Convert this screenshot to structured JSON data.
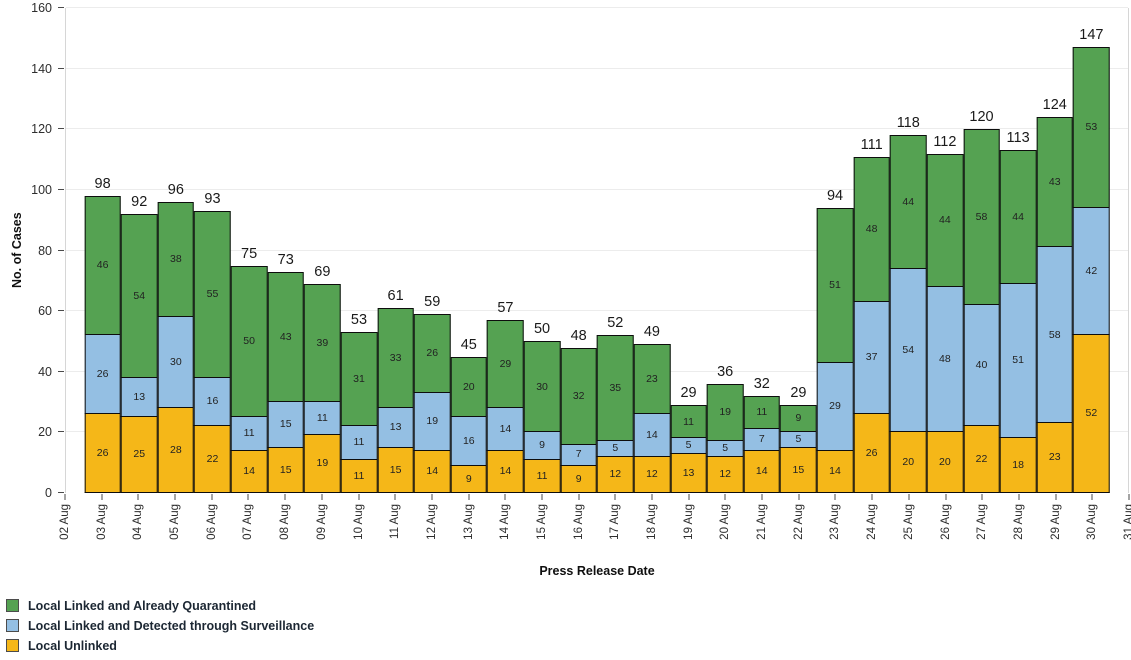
{
  "chart_data": {
    "type": "bar",
    "stacked": true,
    "title": "",
    "xlabel": "Press Release Date",
    "ylabel": "No. of Cases",
    "ylim": [
      0,
      160
    ],
    "y_ticks": [
      0,
      20,
      40,
      60,
      80,
      100,
      120,
      140,
      160
    ],
    "grid": "horizontal",
    "legend_position": "bottom-left",
    "bar_border_color": "#0d0d0d",
    "x_axis_ticks": [
      "02 Aug",
      "03 Aug",
      "04 Aug",
      "05 Aug",
      "06 Aug",
      "07 Aug",
      "08 Aug",
      "09 Aug",
      "10 Aug",
      "11 Aug",
      "12 Aug",
      "13 Aug",
      "14 Aug",
      "15 Aug",
      "16 Aug",
      "17 Aug",
      "18 Aug",
      "19 Aug",
      "20 Aug",
      "21 Aug",
      "22 Aug",
      "23 Aug",
      "24 Aug",
      "25 Aug",
      "26 Aug",
      "27 Aug",
      "28 Aug",
      "29 Aug",
      "30 Aug",
      "31 Aug"
    ],
    "categories": [
      "03 Aug",
      "04 Aug",
      "05 Aug",
      "06 Aug",
      "07 Aug",
      "08 Aug",
      "09 Aug",
      "10 Aug",
      "11 Aug",
      "12 Aug",
      "13 Aug",
      "14 Aug",
      "15 Aug",
      "16 Aug",
      "17 Aug",
      "18 Aug",
      "19 Aug",
      "20 Aug",
      "21 Aug",
      "22 Aug",
      "23 Aug",
      "24 Aug",
      "25 Aug",
      "26 Aug",
      "27 Aug",
      "28 Aug",
      "29 Aug",
      "30 Aug"
    ],
    "stack_order": "series listed top-to-bottom; last series is bottom of stack",
    "series": [
      {
        "name": "Local Linked and Already Quarantined",
        "color": "#55a252",
        "values": [
          46,
          54,
          38,
          55,
          50,
          43,
          39,
          31,
          33,
          26,
          20,
          29,
          30,
          32,
          35,
          23,
          11,
          19,
          11,
          9,
          51,
          48,
          44,
          44,
          58,
          44,
          43,
          53
        ]
      },
      {
        "name": "Local Linked and Detected through Surveillance",
        "color": "#94bfe3",
        "values": [
          26,
          13,
          30,
          16,
          11,
          15,
          11,
          11,
          13,
          19,
          16,
          14,
          9,
          7,
          5,
          14,
          5,
          5,
          7,
          5,
          29,
          37,
          54,
          48,
          40,
          51,
          58,
          42
        ]
      },
      {
        "name": "Local Unlinked",
        "color": "#f5b718",
        "values": [
          26,
          25,
          28,
          22,
          14,
          15,
          19,
          11,
          15,
          14,
          9,
          14,
          11,
          9,
          12,
          12,
          13,
          12,
          14,
          15,
          14,
          26,
          20,
          20,
          22,
          18,
          23,
          52
        ]
      }
    ],
    "totals": [
      98,
      92,
      96,
      93,
      75,
      73,
      69,
      53,
      61,
      59,
      45,
      57,
      50,
      48,
      52,
      49,
      29,
      36,
      32,
      29,
      94,
      111,
      118,
      112,
      120,
      113,
      124,
      147
    ]
  }
}
